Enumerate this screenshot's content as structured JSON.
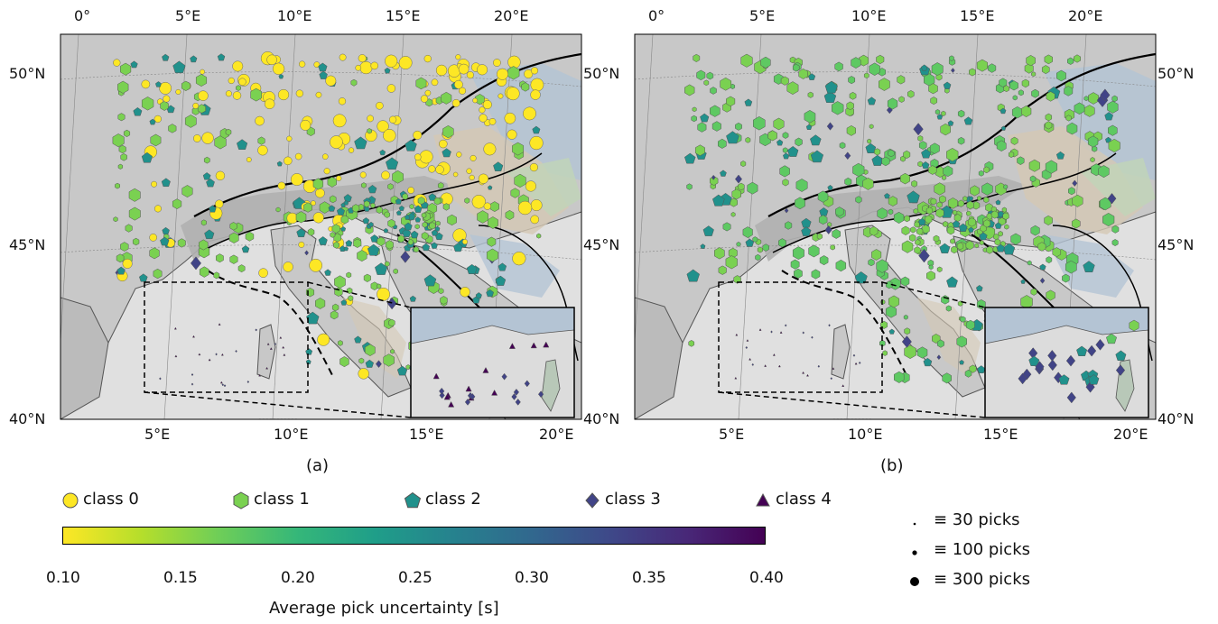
{
  "panels": [
    {
      "label": "(a)",
      "top_lon_labels": [
        "0°",
        "5°E",
        "10°E",
        "15°E",
        "20°E"
      ],
      "bottom_lon_labels": [
        "5°E",
        "10°E",
        "15°E",
        "20°E"
      ],
      "lat_labels": [
        "50°N",
        "45°N",
        "40°N"
      ]
    },
    {
      "label": "(b)",
      "top_lon_labels": [
        "0°",
        "5°E",
        "10°E",
        "15°E",
        "20°E"
      ],
      "bottom_lon_labels": [
        "5°E",
        "10°E",
        "15°E",
        "20°E"
      ],
      "lat_labels": [
        "50°N",
        "45°N",
        "40°N"
      ]
    }
  ],
  "legend": {
    "classes": [
      {
        "label": "class 0",
        "shape": "circle",
        "color": "#fde725"
      },
      {
        "label": "class 1",
        "shape": "hexagon",
        "color": "#7ad151"
      },
      {
        "label": "class 2",
        "shape": "pentagon",
        "color": "#21918c"
      },
      {
        "label": "class 3",
        "shape": "diamond",
        "color": "#414487"
      },
      {
        "label": "class 4",
        "shape": "triangle",
        "color": "#440154"
      }
    ],
    "sizes": [
      {
        "label": "≡ 30 picks"
      },
      {
        "label": "≡ 100 picks"
      },
      {
        "label": "≡ 300 picks"
      }
    ]
  },
  "colorbar": {
    "ticks": [
      "0.10",
      "0.15",
      "0.20",
      "0.25",
      "0.30",
      "0.35",
      "0.40"
    ],
    "title": "Average pick uncertainty [s]",
    "colors": [
      "#fde725",
      "#b5de2b",
      "#6ece58",
      "#35b779",
      "#1f9e89",
      "#26828e",
      "#31688e",
      "#3e4989",
      "#482878",
      "#440154"
    ]
  },
  "map_colors": {
    "sea": "#e0e0e0",
    "land": "#c8c8c8",
    "alps": "#b0b0b0",
    "basin_blue": "#b4c4d4",
    "basin_tan": "#d4c8b4",
    "basin_green": "#c0d4b8"
  }
}
